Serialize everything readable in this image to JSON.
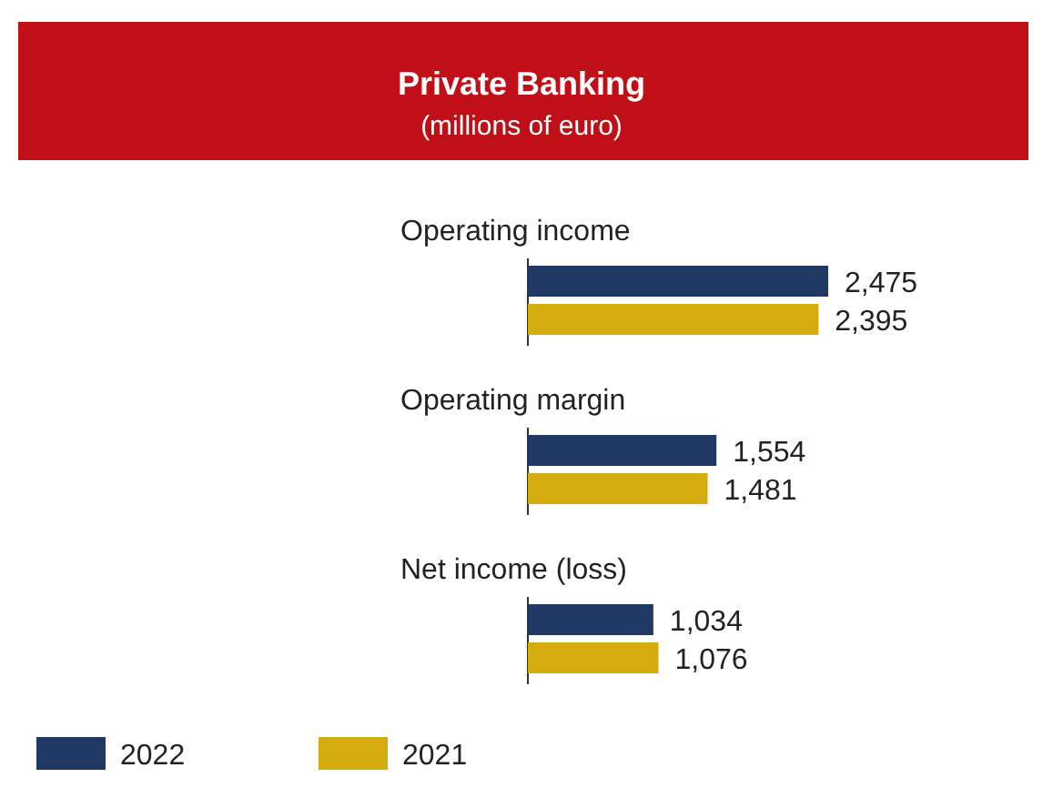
{
  "chart_data": {
    "type": "bar",
    "orientation": "horizontal",
    "title": "Private Banking",
    "subtitle": "(millions of euro)",
    "categories": [
      "Operating income",
      "Operating margin",
      "Net income (loss)"
    ],
    "series": [
      {
        "name": "2022",
        "color": "#1f3864",
        "values": [
          2475,
          1554,
          1034
        ],
        "value_labels": [
          "2,475",
          "1,554",
          "1,034"
        ]
      },
      {
        "name": "2021",
        "color": "#d4ac0d",
        "values": [
          2395,
          1481,
          1076
        ],
        "value_labels": [
          "2,395",
          "1,481",
          "1,076"
        ]
      }
    ],
    "legend": "bottom left"
  }
}
